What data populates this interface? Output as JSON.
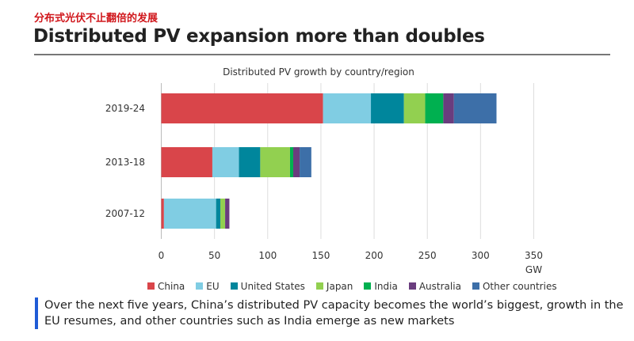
{
  "header": {
    "subtitle_cn": "分布式光伏不止翻倍的发展",
    "title": "Distributed PV expansion more than doubles"
  },
  "chart_data": {
    "type": "bar",
    "orientation": "horizontal",
    "stacked": true,
    "title": "Distributed PV growth by country/region",
    "xlabel": "GW",
    "xlim": [
      0,
      350
    ],
    "xticks": [
      0,
      50,
      100,
      150,
      200,
      250,
      300,
      350
    ],
    "grid": true,
    "legend_position": "bottom",
    "categories": [
      "2019-24",
      "2013-18",
      "2007-12"
    ],
    "series": [
      {
        "name": "China",
        "color": "#d9454a",
        "values": [
          152,
          48,
          2.5
        ]
      },
      {
        "name": "EU",
        "color": "#80cde3",
        "values": [
          45,
          25,
          49
        ]
      },
      {
        "name": "United States",
        "color": "#00869c",
        "values": [
          31,
          20,
          4
        ]
      },
      {
        "name": "Japan",
        "color": "#92d050",
        "values": [
          20,
          28,
          4.5
        ]
      },
      {
        "name": "India",
        "color": "#00b050",
        "values": [
          17,
          3,
          0
        ]
      },
      {
        "name": "Australia",
        "color": "#6a3d7e",
        "values": [
          10,
          6,
          4
        ]
      },
      {
        "name": "Other countries",
        "color": "#3d6fa8",
        "values": [
          40,
          11,
          0
        ]
      }
    ]
  },
  "footnote": "Over the next five years, China’s distributed PV capacity becomes the world’s biggest, growth in the EU resumes, and other countries such as India emerge as new markets",
  "accent_color": "#1f5bd6"
}
